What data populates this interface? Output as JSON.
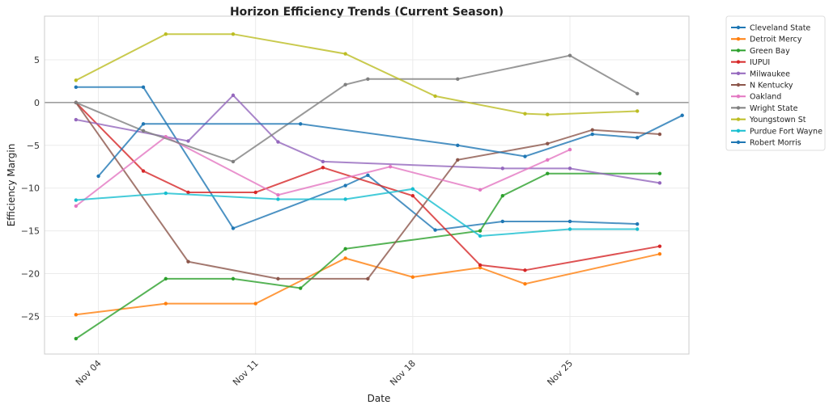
{
  "chart_data": {
    "type": "line",
    "title": "Horizon Efficiency Trends (Current Season)",
    "xlabel": "Date",
    "ylabel": "Efficiency Margin",
    "x_unit": "day of November",
    "xlim": [
      1.6,
      30.3
    ],
    "ylim": [
      -29.4,
      10.1
    ],
    "xticks": [
      {
        "value": 4,
        "label": "Nov 04"
      },
      {
        "value": 11,
        "label": "Nov 11"
      },
      {
        "value": 18,
        "label": "Nov 18"
      },
      {
        "value": 25,
        "label": "Nov 25"
      }
    ],
    "yticks": [
      -25,
      -20,
      -15,
      -10,
      -5,
      0,
      5
    ],
    "grid": true,
    "reference_line": 0,
    "legend_placement": "outside-top-right",
    "series": [
      {
        "name": "Cleveland State",
        "color": "#1f77b4",
        "x": [
          3,
          6,
          10,
          15,
          16,
          19,
          22,
          25,
          28
        ],
        "y": [
          1.8,
          1.8,
          -14.7,
          -9.7,
          -8.5,
          -14.9,
          -13.9,
          -13.9,
          -14.2
        ]
      },
      {
        "name": "Detroit Mercy",
        "color": "#ff7f0e",
        "x": [
          3,
          7,
          11,
          15,
          18,
          21,
          23,
          29
        ],
        "y": [
          -24.8,
          -23.5,
          -23.5,
          -18.2,
          -20.4,
          -19.3,
          -21.2,
          -17.7
        ]
      },
      {
        "name": "Green Bay",
        "color": "#2ca02c",
        "x": [
          3,
          7,
          10,
          13,
          15,
          21,
          22,
          24,
          29
        ],
        "y": [
          -27.6,
          -20.6,
          -20.6,
          -21.7,
          -17.1,
          -15.0,
          -10.9,
          -8.3,
          -8.3
        ]
      },
      {
        "name": "IUPUI",
        "color": "#d62728",
        "x": [
          3,
          6,
          8,
          11,
          14,
          18,
          21,
          23,
          29
        ],
        "y": [
          0,
          -8.0,
          -10.5,
          -10.5,
          -7.6,
          -10.9,
          -19.0,
          -19.6,
          -16.8
        ]
      },
      {
        "name": "Milwaukee",
        "color": "#9467bd",
        "x": [
          3,
          8,
          10,
          12,
          14,
          22,
          25,
          29
        ],
        "y": [
          -2.0,
          -4.5,
          0.85,
          -4.6,
          -6.9,
          -7.7,
          -7.7,
          -9.4
        ]
      },
      {
        "name": "N Kentucky",
        "color": "#8c564b",
        "x": [
          3,
          8,
          12,
          16,
          20,
          24,
          26,
          29
        ],
        "y": [
          0,
          -18.6,
          -20.6,
          -20.6,
          -6.7,
          -4.8,
          -3.2,
          -3.7
        ]
      },
      {
        "name": "Oakland",
        "color": "#e377c2",
        "x": [
          3,
          7,
          12,
          17,
          21,
          24,
          25
        ],
        "y": [
          -12.1,
          -4.0,
          -10.8,
          -7.5,
          -10.2,
          -6.7,
          -5.5
        ]
      },
      {
        "name": "Wright State",
        "color": "#7f7f7f",
        "x": [
          3,
          6,
          10,
          15,
          16,
          20,
          25,
          28
        ],
        "y": [
          0,
          -3.3,
          -6.9,
          2.1,
          2.75,
          2.75,
          5.5,
          1.05
        ]
      },
      {
        "name": "Youngstown St",
        "color": "#bcbd22",
        "x": [
          3,
          7,
          10,
          15,
          19,
          23,
          24,
          28
        ],
        "y": [
          2.6,
          8.0,
          8.0,
          5.7,
          0.75,
          -1.3,
          -1.4,
          -1.0
        ]
      },
      {
        "name": "Purdue Fort Wayne",
        "color": "#17becf",
        "x": [
          3,
          7,
          12,
          15,
          18,
          21,
          25,
          28
        ],
        "y": [
          -11.4,
          -10.6,
          -11.3,
          -11.3,
          -10.1,
          -15.6,
          -14.8,
          -14.8
        ]
      },
      {
        "name": "Robert Morris",
        "color": "#1f77b4",
        "x": [
          4,
          6,
          13,
          20,
          23,
          26,
          28,
          30
        ],
        "y": [
          -8.6,
          -2.5,
          -2.5,
          -5.0,
          -6.3,
          -3.7,
          -4.1,
          -1.5
        ]
      }
    ]
  }
}
